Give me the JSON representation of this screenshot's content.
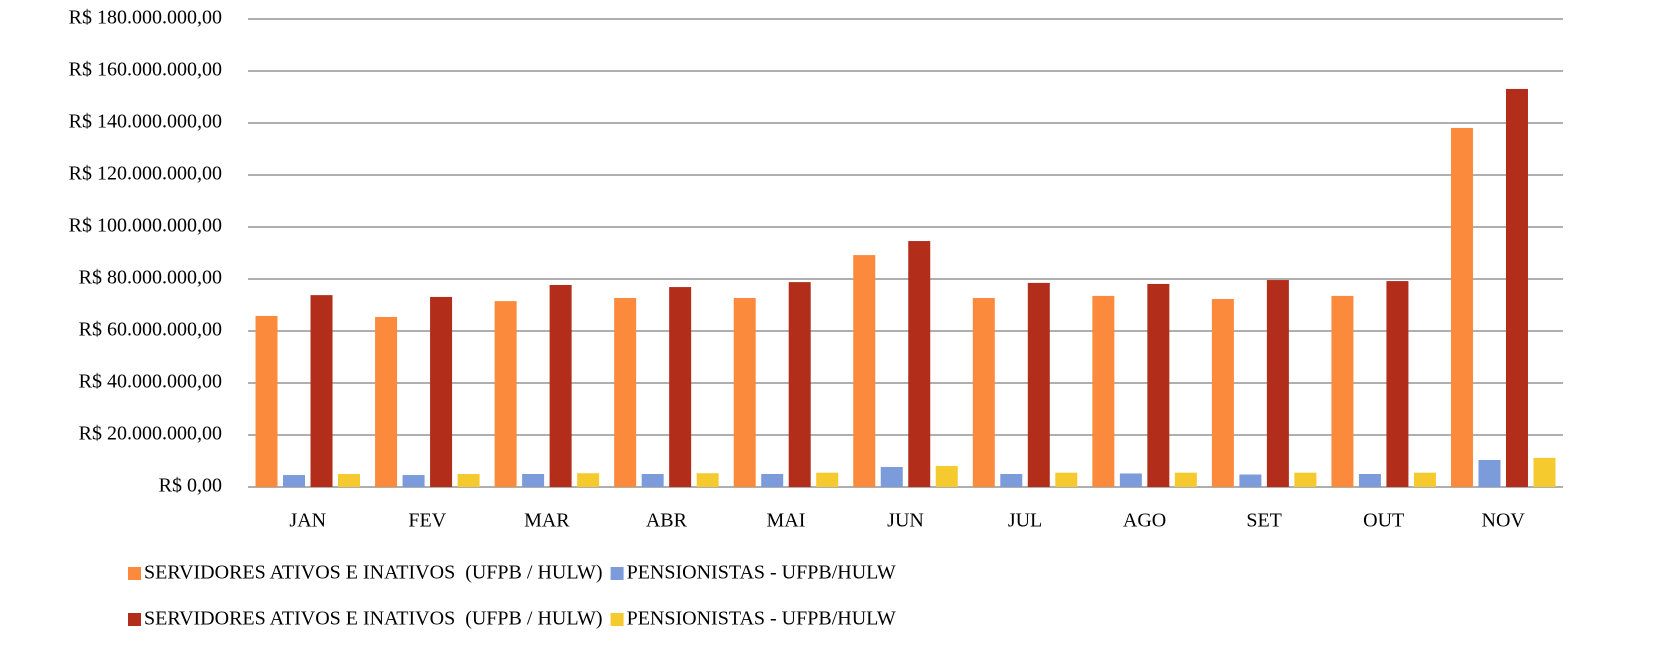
{
  "chart_data": {
    "type": "bar",
    "categories": [
      "JAN",
      "FEV",
      "MAR",
      "ABR",
      "MAI",
      "JUN",
      "JUL",
      "AGO",
      "SET",
      "OUT",
      "NOV"
    ],
    "series": [
      {
        "name": "SERVIDORES ATIVOS E INATIVOS  (UFPB / HULW)",
        "color": "#fb8a3c",
        "values": [
          65800000,
          65400000,
          71500000,
          72700000,
          72700000,
          89200000,
          72700000,
          73500000,
          72300000,
          73500000,
          138100000
        ]
      },
      {
        "name": "PENSIONISTAS - UFPB/HULW",
        "color": "#7b9bdb",
        "values": [
          4600000,
          4600000,
          5000000,
          5000000,
          5000000,
          7700000,
          5000000,
          5200000,
          4800000,
          5000000,
          10400000
        ]
      },
      {
        "name": "SERVIDORES ATIVOS E INATIVOS  (UFPB / HULW)",
        "color": "#b32d1b",
        "values": [
          73800000,
          73100000,
          77700000,
          76900000,
          78800000,
          94600000,
          78500000,
          78100000,
          79600000,
          79200000,
          153100000
        ]
      },
      {
        "name": "PENSIONISTAS - UFPB/HULW",
        "color": "#f5ca2e",
        "values": [
          5000000,
          5000000,
          5300000,
          5300000,
          5500000,
          8100000,
          5500000,
          5500000,
          5500000,
          5500000,
          11200000
        ]
      }
    ],
    "ylim": [
      0,
      180000000
    ],
    "yticks": [
      {
        "value": 0,
        "label": "R$ 0,00"
      },
      {
        "value": 20000000,
        "label": "R$ 20.000.000,00"
      },
      {
        "value": 40000000,
        "label": "R$ 40.000.000,00"
      },
      {
        "value": 60000000,
        "label": "R$ 60.000.000,00"
      },
      {
        "value": 80000000,
        "label": "R$ 80.000.000,00"
      },
      {
        "value": 100000000,
        "label": "R$ 100.000.000,00"
      },
      {
        "value": 120000000,
        "label": "R$ 120.000.000,00"
      },
      {
        "value": 140000000,
        "label": "R$ 140.000.000,00"
      },
      {
        "value": 160000000,
        "label": "R$ 160.000.000,00"
      },
      {
        "value": 180000000,
        "label": "R$ 180.000.000,00"
      }
    ],
    "grid": true
  }
}
